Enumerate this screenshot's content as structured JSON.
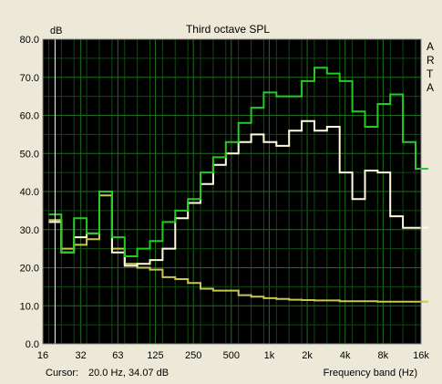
{
  "chart_data": {
    "type": "line",
    "title": "Third octave SPL",
    "ylabel": "dB",
    "xlabel": "Frequency band (Hz)",
    "ylim": [
      0,
      80
    ],
    "y_ticks": [
      "0.0",
      "10.0",
      "20.0",
      "30.0",
      "40.0",
      "50.0",
      "60.0",
      "70.0",
      "80.0"
    ],
    "x_tick_labels": [
      "16",
      "32",
      "63",
      "125",
      "250",
      "500",
      "1k",
      "2k",
      "4k",
      "8k",
      "16k"
    ],
    "bands": [
      "20",
      "25",
      "31.5",
      "40",
      "50",
      "63",
      "80",
      "100",
      "125",
      "160",
      "200",
      "250",
      "315",
      "400",
      "500",
      "630",
      "800",
      "1k",
      "1.25k",
      "1.6k",
      "2k",
      "2.5k",
      "3.15k",
      "4k",
      "5k",
      "6.3k",
      "8k",
      "10k",
      "12.5k",
      "16k"
    ],
    "grid": true,
    "series": [
      {
        "color": "#22cc22",
        "values": [
          34,
          24,
          33,
          29,
          40,
          28,
          23,
          25,
          27,
          32,
          35,
          38,
          45,
          49,
          53,
          58,
          62,
          66,
          65,
          65,
          69,
          72.5,
          71,
          69,
          61,
          57,
          63,
          65.5,
          53,
          46
        ]
      },
      {
        "color": "#ffffdd",
        "values": [
          32,
          24,
          28,
          29,
          40,
          24,
          20.5,
          21,
          22,
          25,
          33,
          37,
          42,
          47,
          50,
          53,
          55,
          53,
          52,
          56,
          58.5,
          56,
          57,
          45,
          38,
          45.5,
          45,
          33.5,
          30.5,
          30.5
        ]
      },
      {
        "color": "#c8c850",
        "values": [
          32.5,
          25,
          26,
          27.5,
          39,
          25,
          21,
          20,
          19.5,
          17.5,
          17,
          16,
          14.5,
          14,
          14,
          12.8,
          12.4,
          12,
          11.8,
          11.6,
          11.5,
          11.4,
          11.4,
          11.2,
          11.2,
          11.2,
          11.1,
          11.1,
          11.1,
          11.1
        ]
      }
    ]
  },
  "brand_letters": [
    "A",
    "R",
    "T",
    "A"
  ],
  "status": {
    "cursor_label": "Cursor:",
    "cursor_value": "20.0 Hz, 34.07 dB"
  },
  "colors": {
    "plot_background": "#000000",
    "grid": "#1f6e1f",
    "grid_minor": "#124812",
    "frame": "#ece9d8",
    "cursor_line": "#ffffff"
  }
}
